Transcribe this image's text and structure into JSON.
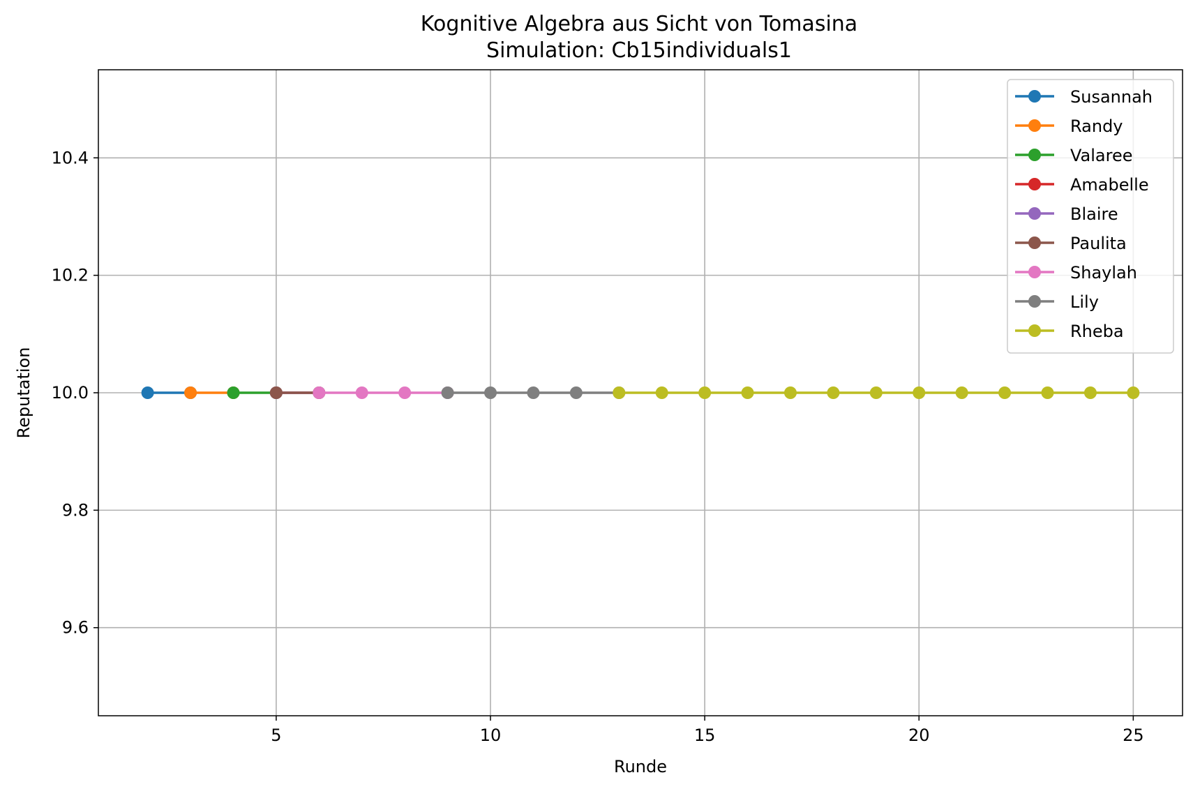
{
  "chart_data": {
    "type": "line",
    "title": "Kognitive Algebra aus Sicht von Tomasina",
    "subtitle": "Simulation: Cb15individuals1",
    "xlabel": "Runde",
    "ylabel": "Reputation",
    "xlim": [
      0.85,
      26.15
    ],
    "ylim": [
      9.45,
      10.55
    ],
    "xticks": [
      5,
      10,
      15,
      20,
      25
    ],
    "xtick_labels": [
      "5",
      "10",
      "15",
      "20",
      "25"
    ],
    "yticks": [
      9.6,
      9.8,
      10.0,
      10.2,
      10.4
    ],
    "ytick_labels": [
      "9.6",
      "9.8",
      "10.0",
      "10.2",
      "10.4"
    ],
    "grid": true,
    "legend_position": "top-right",
    "series": [
      {
        "name": "Susannah",
        "color": "#1f77b4",
        "x": [
          2,
          3
        ],
        "y": [
          10.0,
          10.0
        ]
      },
      {
        "name": "Randy",
        "color": "#ff7f0e",
        "x": [
          3,
          4
        ],
        "y": [
          10.0,
          10.0
        ]
      },
      {
        "name": "Valaree",
        "color": "#2ca02c",
        "x": [
          4,
          5
        ],
        "y": [
          10.0,
          10.0
        ]
      },
      {
        "name": "Amabelle",
        "color": "#d62728",
        "x": [
          5,
          6
        ],
        "y": [
          10.0,
          10.0
        ]
      },
      {
        "name": "Blaire",
        "color": "#9467bd",
        "x": [
          5,
          6
        ],
        "y": [
          10.0,
          10.0
        ]
      },
      {
        "name": "Paulita",
        "color": "#8c564b",
        "x": [
          5,
          6
        ],
        "y": [
          10.0,
          10.0
        ]
      },
      {
        "name": "Shaylah",
        "color": "#e377c2",
        "x": [
          6,
          7,
          8,
          9
        ],
        "y": [
          10.0,
          10.0,
          10.0,
          10.0
        ]
      },
      {
        "name": "Lily",
        "color": "#7f7f7f",
        "x": [
          9,
          10,
          11,
          12,
          13
        ],
        "y": [
          10.0,
          10.0,
          10.0,
          10.0,
          10.0
        ]
      },
      {
        "name": "Rheba",
        "color": "#bcbd22",
        "x": [
          13,
          14,
          15,
          16,
          17,
          18,
          19,
          20,
          21,
          22,
          23,
          24,
          25
        ],
        "y": [
          10.0,
          10.0,
          10.0,
          10.0,
          10.0,
          10.0,
          10.0,
          10.0,
          10.0,
          10.0,
          10.0,
          10.0,
          10.0
        ]
      }
    ]
  }
}
